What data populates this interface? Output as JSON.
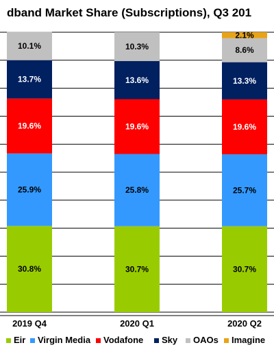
{
  "chart_data": {
    "type": "bar",
    "stacked": true,
    "title": "dband Market Share (Subscriptions), Q3 201",
    "categories": [
      "2019 Q4",
      "2020 Q1",
      "2020 Q2"
    ],
    "series": [
      {
        "name": "Eir",
        "color": "#99cc00",
        "values": [
          30.8,
          30.7,
          30.7
        ],
        "labels": [
          "30.8%",
          "30.7%",
          "30.7%"
        ],
        "label_color": "#000000"
      },
      {
        "name": "Virgin Media",
        "color": "#3399ff",
        "values": [
          25.9,
          25.8,
          25.7
        ],
        "labels": [
          "25.9%",
          "25.8%",
          "25.7%"
        ],
        "label_color": "#000000"
      },
      {
        "name": "Vodafone",
        "color": "#ff0000",
        "values": [
          19.6,
          19.6,
          19.6
        ],
        "labels": [
          "19.6%",
          "19.6%",
          "19.6%"
        ],
        "label_color": "#ffffff"
      },
      {
        "name": "Sky",
        "color": "#002060",
        "values": [
          13.7,
          13.6,
          13.3
        ],
        "labels": [
          "13.7%",
          "13.6%",
          "13.3%"
        ],
        "label_color": "#ffffff"
      },
      {
        "name": "OAOs",
        "color": "#c0c0c0",
        "values": [
          10.1,
          10.3,
          8.6
        ],
        "labels": [
          "10.1%",
          "10.3%",
          "8.6%"
        ],
        "label_color": "#000000"
      },
      {
        "name": "Imagine",
        "color": "#e8a317",
        "values": [
          0,
          0,
          2.1
        ],
        "labels": [
          "",
          "",
          "2.1%"
        ],
        "label_color": "#000000"
      }
    ],
    "ylim": [
      0,
      100
    ],
    "grid": true,
    "legend": "bottom"
  }
}
